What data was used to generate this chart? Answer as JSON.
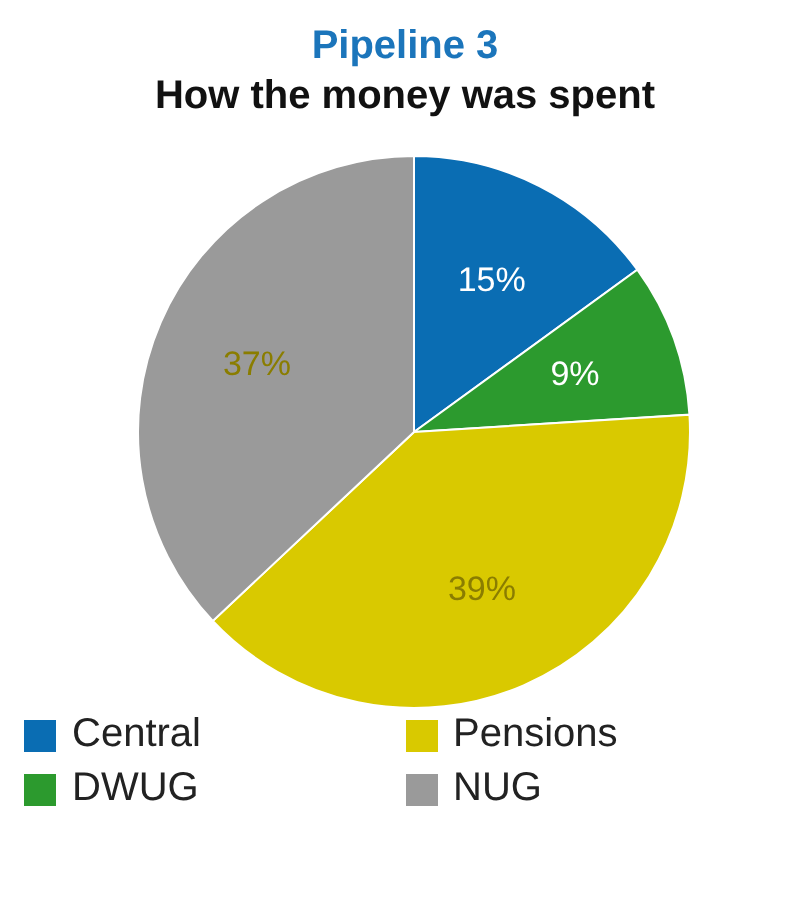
{
  "chart_data": {
    "type": "pie",
    "title": "Pipeline 3",
    "subtitle": "How the money was spent",
    "categories": [
      "Central",
      "DWUG",
      "Pensions",
      "NUG"
    ],
    "values": [
      15,
      9,
      39,
      37
    ],
    "value_labels": [
      "15%",
      "9%",
      "39%",
      "37%"
    ],
    "colors": [
      "#0a6db3",
      "#2c9a2e",
      "#d9c900",
      "#9a9a9a"
    ],
    "legend": "bottom"
  }
}
